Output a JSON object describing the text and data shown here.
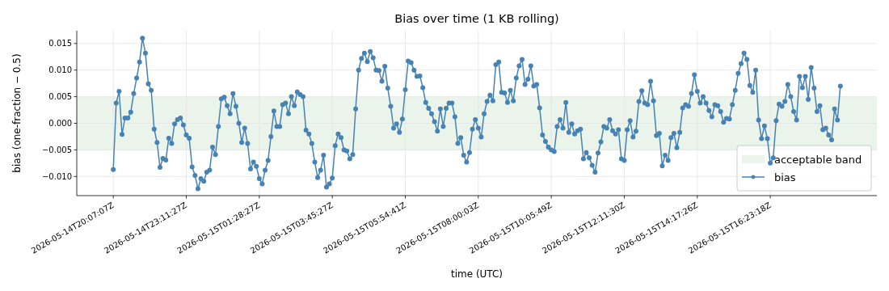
{
  "chart_data": {
    "type": "line",
    "title": "Bias over time (1 KB rolling)",
    "xlabel": "time (UTC)",
    "ylabel": "bias (one-fraction − 0.5)",
    "categories": [
      null,
      null,
      null,
      null,
      null,
      null,
      null,
      null,
      null,
      null,
      null,
      null,
      "2026-05-14T20:07:07Z",
      null,
      null,
      null,
      null,
      null,
      null,
      null,
      null,
      null,
      null,
      null,
      null,
      null,
      null,
      null,
      null,
      null,
      null,
      null,
      null,
      null,
      null,
      null,
      null,
      "2026-05-14T23:11:27Z",
      null,
      null,
      null,
      null,
      null,
      null,
      null,
      null,
      null,
      null,
      null,
      null,
      null,
      null,
      null,
      null,
      null,
      null,
      null,
      null,
      null,
      null,
      null,
      null,
      "2026-05-15T01:28:27Z",
      null,
      null,
      null,
      null,
      null,
      null,
      null,
      null,
      null,
      null,
      null,
      null,
      null,
      null,
      null,
      null,
      null,
      null,
      null,
      null,
      null,
      null,
      null,
      null,
      "2026-05-15T03:45:27Z",
      null,
      null,
      null,
      null,
      null,
      null,
      null,
      null,
      null,
      null,
      null,
      null,
      null,
      null,
      null,
      null,
      null,
      null,
      null,
      null,
      null,
      null,
      null,
      null,
      "2026-05-15T05:54:41Z",
      null,
      null,
      null,
      null,
      null,
      null,
      null,
      null,
      null,
      null,
      null,
      null,
      null,
      null,
      null,
      null,
      null,
      null,
      null,
      null,
      null,
      null,
      null,
      null,
      "2026-05-15T08:00:03Z",
      null,
      null,
      null,
      null,
      null,
      null,
      null,
      null,
      null,
      null,
      null,
      null,
      null,
      null,
      null,
      null,
      null,
      null,
      null,
      null,
      null,
      null,
      null,
      null,
      "2026-05-15T10:05:49Z",
      null,
      null,
      null,
      null,
      null,
      null,
      null,
      null,
      null,
      null,
      null,
      null,
      null,
      null,
      null,
      null,
      null,
      null,
      null,
      null,
      null,
      null,
      null,
      null,
      "2026-05-15T12:11:30Z",
      null,
      null,
      null,
      null,
      null,
      null,
      null,
      null,
      null,
      null,
      null,
      null,
      null,
      null,
      null,
      null,
      null,
      null,
      null,
      null,
      null,
      null,
      null,
      null,
      "2026-05-15T14:17:26Z",
      null,
      null,
      null,
      null,
      null,
      null,
      null,
      null,
      null,
      null,
      null,
      null,
      null,
      null,
      null,
      null,
      null,
      null,
      null,
      null,
      null,
      null,
      null,
      null,
      "2026-05-15T16:23:18Z",
      null,
      null,
      null,
      null,
      null,
      null,
      null,
      null,
      null,
      null,
      null,
      null,
      null,
      null,
      null,
      null,
      null,
      null,
      null,
      null,
      null,
      null,
      null,
      null,
      null,
      null,
      null,
      null,
      null,
      null,
      null,
      null,
      null,
      null,
      null,
      null
    ],
    "series": [
      {
        "name": "bias",
        "color": "#4682b4",
        "values": [
          null,
          null,
          null,
          null,
          null,
          null,
          null,
          null,
          null,
          null,
          null,
          null,
          -0.0087,
          0.0038,
          0.006,
          -0.0021,
          0.001,
          0.001,
          0.0021,
          0.0056,
          0.0085,
          0.0115,
          0.016,
          0.0132,
          0.0074,
          0.0062,
          -0.0011,
          -0.0036,
          -0.0083,
          -0.0066,
          -0.0069,
          -0.0028,
          -0.0038,
          -0.0001,
          0.0007,
          0.001,
          -0.0003,
          -0.0022,
          -0.0028,
          -0.0082,
          -0.0098,
          -0.0123,
          -0.0104,
          -0.0109,
          -0.0092,
          -0.0088,
          -0.0045,
          -0.0059,
          -0.0006,
          0.0046,
          0.0049,
          0.0033,
          0.0018,
          0.0056,
          0.0032,
          0.0,
          -0.0036,
          -0.0009,
          -0.0038,
          -0.0086,
          -0.0073,
          -0.0081,
          -0.0104,
          -0.0114,
          -0.0088,
          -0.007,
          -0.0025,
          0.0023,
          -0.0006,
          -0.0006,
          0.0035,
          0.0038,
          0.0018,
          0.005,
          0.0033,
          0.0059,
          0.0054,
          0.005,
          -0.0013,
          -0.002,
          -0.0038,
          -0.0073,
          -0.0102,
          -0.0088,
          -0.006,
          -0.012,
          -0.0114,
          -0.0103,
          -0.0042,
          -0.002,
          -0.0027,
          -0.005,
          -0.0052,
          -0.0067,
          -0.0059,
          0.0027,
          0.01,
          0.0122,
          0.0132,
          0.0116,
          0.0135,
          0.0123,
          0.01,
          0.0099,
          0.0079,
          0.0107,
          0.0066,
          0.0032,
          -0.0009,
          -0.0001,
          -0.0017,
          0.0008,
          0.0063,
          0.0117,
          0.0114,
          0.01,
          0.0088,
          0.0089,
          0.0067,
          0.0039,
          0.0028,
          0.0018,
          0.0003,
          -0.0015,
          0.0027,
          -0.0006,
          0.0028,
          0.0038,
          0.0038,
          0.0012,
          -0.0038,
          -0.0027,
          -0.006,
          -0.0073,
          -0.0055,
          -0.0011,
          0.0007,
          -0.0009,
          -0.0026,
          0.0018,
          0.0041,
          0.0053,
          0.0042,
          0.011,
          0.0115,
          0.0058,
          0.0057,
          0.0039,
          0.0062,
          0.0042,
          0.0085,
          0.0108,
          0.012,
          0.0073,
          0.0083,
          0.0108,
          0.007,
          0.0073,
          0.0029,
          -0.0022,
          -0.0034,
          -0.0045,
          -0.005,
          -0.0053,
          -0.0006,
          0.0007,
          -0.0009,
          0.0039,
          -0.0017,
          -0.0001,
          -0.002,
          -0.0014,
          -0.0011,
          -0.0067,
          -0.0055,
          -0.0065,
          -0.0079,
          -0.0092,
          -0.0056,
          -0.0035,
          -0.0006,
          -0.0009,
          0.0007,
          -0.0014,
          -0.002,
          -0.0012,
          -0.0067,
          -0.007,
          -0.0012,
          0.0005,
          -0.0026,
          -0.0015,
          0.0041,
          0.0061,
          0.0038,
          0.0035,
          0.0079,
          0.0042,
          -0.0023,
          -0.0019,
          -0.008,
          -0.006,
          -0.007,
          -0.0027,
          -0.0019,
          -0.0046,
          -0.0017,
          0.0029,
          0.0035,
          0.0032,
          0.0056,
          0.0091,
          0.006,
          0.0038,
          0.005,
          0.0038,
          0.0024,
          0.0012,
          0.0035,
          0.0033,
          0.0022,
          0.0002,
          0.0009,
          0.0008,
          0.0035,
          0.0062,
          0.0094,
          0.0112,
          0.0132,
          0.012,
          0.0071,
          0.0058,
          0.01,
          0.0006,
          -0.0029,
          -0.0005,
          -0.0029,
          -0.0075,
          -0.0065,
          0.0005,
          0.0036,
          0.0032,
          0.0041,
          0.0073,
          0.005,
          0.0022,
          0.0006,
          0.0088,
          0.0067,
          0.0088,
          0.0045,
          0.0105,
          0.0066,
          0.0022,
          0.0033,
          -0.0012,
          -0.0009,
          -0.0022,
          -0.0031,
          0.0027,
          0.0006,
          0.007,
          null,
          null,
          null,
          null,
          null,
          null,
          null,
          null,
          null,
          null,
          null,
          null
        ]
      }
    ],
    "ylim": [
      -0.0136,
      0.0174
    ],
    "yticks": [
      {
        "value": -0.01,
        "label": "−0.010"
      },
      {
        "value": -0.005,
        "label": "−0.005"
      },
      {
        "value": 0,
        "label": "0.000"
      },
      {
        "value": 0.005,
        "label": "0.005"
      },
      {
        "value": 0.01,
        "label": "0.010"
      },
      {
        "value": 0.015,
        "label": "0.015"
      }
    ],
    "bands": [
      {
        "axis": "y",
        "from": -0.005,
        "to": 0.005,
        "label": "acceptable band",
        "color": "#eaf4ea"
      }
    ],
    "grid": true,
    "legend": "bottom right",
    "marker": "circle",
    "line_style": "solid"
  }
}
